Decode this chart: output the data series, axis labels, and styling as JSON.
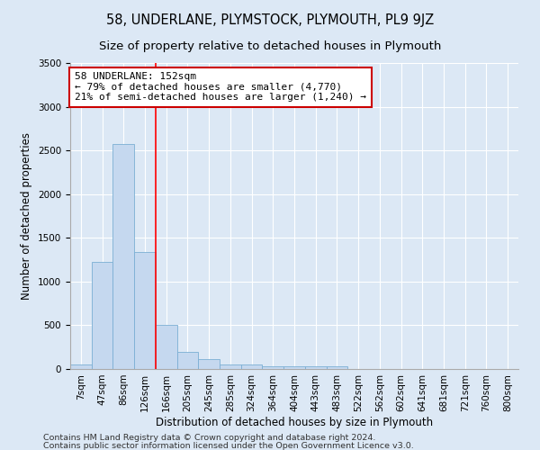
{
  "title": "58, UNDERLANE, PLYMSTOCK, PLYMOUTH, PL9 9JZ",
  "subtitle": "Size of property relative to detached houses in Plymouth",
  "xlabel": "Distribution of detached houses by size in Plymouth",
  "ylabel": "Number of detached properties",
  "footnote1": "Contains HM Land Registry data © Crown copyright and database right 2024.",
  "footnote2": "Contains public sector information licensed under the Open Government Licence v3.0.",
  "bar_labels": [
    "7sqm",
    "47sqm",
    "86sqm",
    "126sqm",
    "166sqm",
    "205sqm",
    "245sqm",
    "285sqm",
    "324sqm",
    "364sqm",
    "404sqm",
    "443sqm",
    "483sqm",
    "522sqm",
    "562sqm",
    "602sqm",
    "641sqm",
    "681sqm",
    "721sqm",
    "760sqm",
    "800sqm"
  ],
  "bar_values": [
    50,
    1230,
    2570,
    1340,
    500,
    200,
    110,
    50,
    50,
    30,
    30,
    30,
    30,
    0,
    0,
    0,
    0,
    0,
    0,
    0,
    0
  ],
  "bar_color": "#c5d8ef",
  "bar_edge_color": "#7bafd4",
  "red_line_x": 3.5,
  "annotation_text": "58 UNDERLANE: 152sqm\n← 79% of detached houses are smaller (4,770)\n21% of semi-detached houses are larger (1,240) →",
  "annotation_box_color": "#ffffff",
  "annotation_box_edge_color": "#cc0000",
  "ylim": [
    0,
    3500
  ],
  "yticks": [
    0,
    500,
    1000,
    1500,
    2000,
    2500,
    3000,
    3500
  ],
  "background_color": "#dce8f5",
  "plot_bg_color": "#dce8f5",
  "grid_color": "#ffffff",
  "title_fontsize": 10.5,
  "subtitle_fontsize": 9.5,
  "axis_label_fontsize": 8.5,
  "tick_fontsize": 7.5,
  "annotation_fontsize": 8,
  "footnote_fontsize": 6.8
}
